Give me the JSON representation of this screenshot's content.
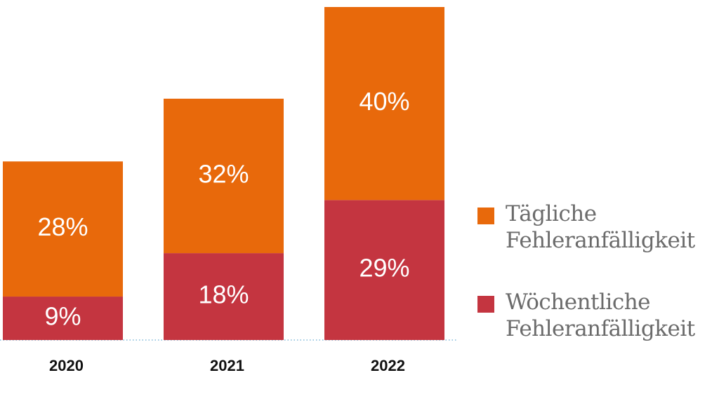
{
  "chart_data": {
    "type": "stacked-bar",
    "categories": [
      "2020",
      "2021",
      "2022"
    ],
    "series": [
      {
        "name": "Wöchentliche Fehleranfälligkeit",
        "color": "#c43540",
        "values": [
          9,
          18,
          29
        ],
        "value_labels": [
          "9%",
          "18%",
          "29%"
        ]
      },
      {
        "name": "Tägliche Fehleranfälligkeit",
        "color": "#e8690b",
        "values": [
          28,
          32,
          40
        ],
        "value_labels": [
          "28%",
          "32%",
          "40%"
        ]
      }
    ]
  }
}
